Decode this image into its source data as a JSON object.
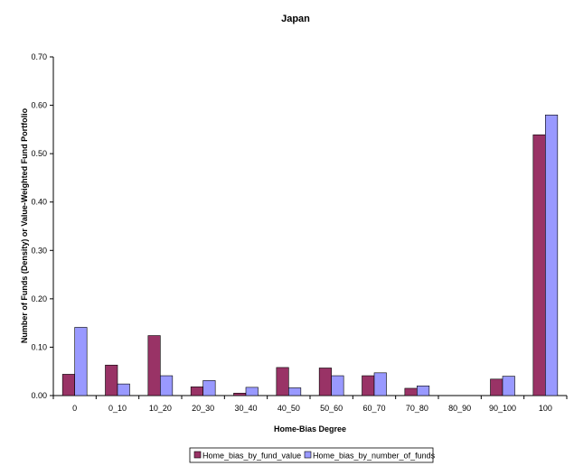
{
  "chart_data": {
    "type": "bar",
    "title": "Japan",
    "xlabel": "Home-Bias Degree",
    "ylabel": "Number of Funds (Density) or Value-Weighted Fund Portfolio",
    "categories": [
      "0",
      "0_10",
      "10_20",
      "20_30",
      "30_40",
      "40_50",
      "50_60",
      "60_70",
      "70_80",
      "80_90",
      "90_100",
      "100"
    ],
    "series": [
      {
        "name": "Home_bias_by_fund_value",
        "values": [
          0.044,
          0.063,
          0.124,
          0.018,
          0.005,
          0.058,
          0.057,
          0.041,
          0.015,
          0.0,
          0.034,
          0.539
        ],
        "color": "#993366"
      },
      {
        "name": "Home_bias_by_number_of_funds",
        "values": [
          0.141,
          0.024,
          0.041,
          0.031,
          0.017,
          0.016,
          0.041,
          0.047,
          0.02,
          0.0,
          0.04,
          0.58
        ],
        "color": "#9999FF"
      }
    ],
    "ylim": [
      0,
      0.7
    ],
    "yticks": [
      "0.00",
      "0.10",
      "0.20",
      "0.30",
      "0.40",
      "0.50",
      "0.60",
      "0.70"
    ],
    "grid": false,
    "legend_position": "bottom-center"
  }
}
